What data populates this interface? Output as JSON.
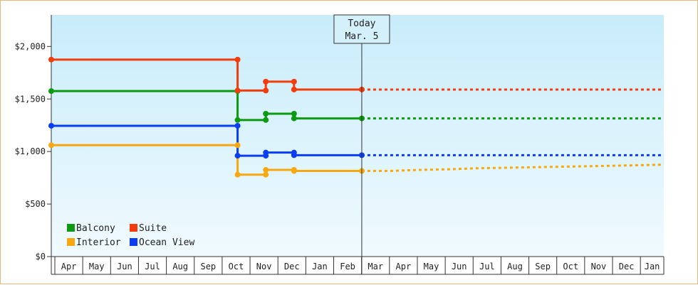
{
  "chart_data": {
    "type": "line",
    "subtype": "step",
    "title": "",
    "xlabel": "",
    "ylabel": "",
    "ylim": [
      0,
      2300
    ],
    "y_ticks": [
      {
        "value": 0,
        "label": "$0"
      },
      {
        "value": 500,
        "label": "$500"
      },
      {
        "value": 1000,
        "label": "$1,000"
      },
      {
        "value": 1500,
        "label": "$1,500"
      },
      {
        "value": 2000,
        "label": "$2,000"
      }
    ],
    "x_months": [
      "Apr",
      "May",
      "Jun",
      "Jul",
      "Aug",
      "Sep",
      "Oct",
      "Nov",
      "Dec",
      "Jan",
      "Feb",
      "Mar",
      "Apr",
      "May",
      "Jun",
      "Jul",
      "Aug",
      "Sep",
      "Oct",
      "Nov",
      "Dec",
      "Jan"
    ],
    "x_range": [
      0,
      21.7
    ],
    "today": {
      "line1": "Today",
      "line2": "Mar. 5",
      "x": 11.0
    },
    "background": {
      "top": "#c8ecfa",
      "bottom": "#f0fafe"
    },
    "legend": {
      "position": "bottom-left"
    },
    "series": [
      {
        "name": "Balcony",
        "color": "#0d9a12",
        "points": [
          [
            0,
            1575
          ],
          [
            6.6,
            1575
          ],
          [
            6.6,
            1300
          ],
          [
            7.6,
            1300
          ],
          [
            7.6,
            1360
          ],
          [
            8.6,
            1360
          ],
          [
            8.6,
            1315
          ],
          [
            11.0,
            1315
          ]
        ],
        "forecast": [
          [
            11.0,
            1315
          ],
          [
            21.7,
            1315
          ]
        ]
      },
      {
        "name": "Suite",
        "color": "#f23c0c",
        "points": [
          [
            0,
            1875
          ],
          [
            6.6,
            1875
          ],
          [
            6.6,
            1580
          ],
          [
            7.6,
            1580
          ],
          [
            7.6,
            1665
          ],
          [
            8.6,
            1665
          ],
          [
            8.6,
            1590
          ],
          [
            11.0,
            1590
          ]
        ],
        "forecast": [
          [
            11.0,
            1590
          ],
          [
            21.7,
            1590
          ]
        ]
      },
      {
        "name": "Interior",
        "color": "#f7a70f",
        "points": [
          [
            0,
            1060
          ],
          [
            6.6,
            1060
          ],
          [
            6.6,
            780
          ],
          [
            7.6,
            780
          ],
          [
            7.6,
            825
          ],
          [
            8.6,
            825
          ],
          [
            8.6,
            815
          ],
          [
            11.0,
            815
          ]
        ],
        "forecast": [
          [
            11.0,
            815
          ],
          [
            12.0,
            815
          ],
          [
            13.0,
            825
          ],
          [
            14.0,
            830
          ],
          [
            15.0,
            840
          ],
          [
            16.0,
            845
          ],
          [
            17.0,
            850
          ],
          [
            18.0,
            855
          ],
          [
            19.0,
            860
          ],
          [
            20.0,
            865
          ],
          [
            21.7,
            875
          ]
        ]
      },
      {
        "name": "Ocean View",
        "color": "#0b3ef2",
        "points": [
          [
            0,
            1245
          ],
          [
            6.6,
            1245
          ],
          [
            6.6,
            960
          ],
          [
            7.6,
            960
          ],
          [
            7.6,
            990
          ],
          [
            8.6,
            990
          ],
          [
            8.6,
            965
          ],
          [
            11.0,
            965
          ]
        ],
        "forecast": [
          [
            11.0,
            965
          ],
          [
            21.7,
            965
          ]
        ]
      }
    ],
    "markers": [
      {
        "series": "Balcony",
        "points": [
          [
            0,
            1575
          ],
          [
            6.6,
            1575
          ],
          [
            6.6,
            1300
          ],
          [
            7.6,
            1300
          ],
          [
            7.6,
            1360
          ],
          [
            8.6,
            1360
          ],
          [
            8.6,
            1315
          ],
          [
            11.0,
            1315
          ]
        ]
      },
      {
        "series": "Suite",
        "points": [
          [
            0,
            1875
          ],
          [
            6.6,
            1875
          ],
          [
            6.6,
            1580
          ],
          [
            7.6,
            1580
          ],
          [
            7.6,
            1665
          ],
          [
            8.6,
            1665
          ],
          [
            8.6,
            1590
          ],
          [
            11.0,
            1590
          ]
        ]
      },
      {
        "series": "Interior",
        "points": [
          [
            0,
            1060
          ],
          [
            6.6,
            1060
          ],
          [
            6.6,
            780
          ],
          [
            7.6,
            780
          ],
          [
            7.6,
            825
          ],
          [
            8.6,
            825
          ],
          [
            8.6,
            815
          ],
          [
            11.0,
            815
          ]
        ]
      },
      {
        "series": "Ocean View",
        "points": [
          [
            0,
            1245
          ],
          [
            6.6,
            1245
          ],
          [
            6.6,
            960
          ],
          [
            7.6,
            960
          ],
          [
            7.6,
            990
          ],
          [
            8.6,
            990
          ],
          [
            8.6,
            965
          ],
          [
            11.0,
            965
          ]
        ]
      }
    ]
  }
}
